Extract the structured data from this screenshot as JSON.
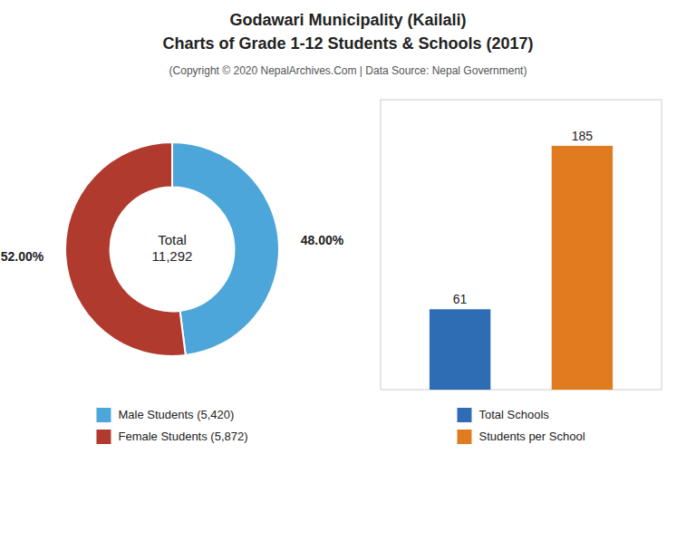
{
  "title": [
    "Godawari Municipality (Kailali)",
    "Charts of Grade 1-12 Students & Schools (2017)"
  ],
  "subtitle": "(Copyright © 2020 NepalArchives.Com | Data Source: Nepal Government)",
  "chart_data": [
    {
      "type": "donut",
      "categories": [
        "Male Students (5,420)",
        "Female Students (5,872)"
      ],
      "values": [
        48,
        52
      ],
      "value_labels": [
        "48.00%",
        "52.00%"
      ],
      "colors": [
        "#4da6d9",
        "#b03a2e"
      ],
      "annotations": [
        "Total",
        "11,292"
      ],
      "data_labels": true,
      "legend": "bottom"
    },
    {
      "type": "bar",
      "categories": [
        "Total Schools",
        "Students per School"
      ],
      "values": [
        61,
        185
      ],
      "colors": [
        "#2e6db4",
        "#e07b20"
      ],
      "ylim": [
        0,
        220
      ],
      "tick_labels": false,
      "data_labels": true,
      "legend": "bottom"
    }
  ]
}
